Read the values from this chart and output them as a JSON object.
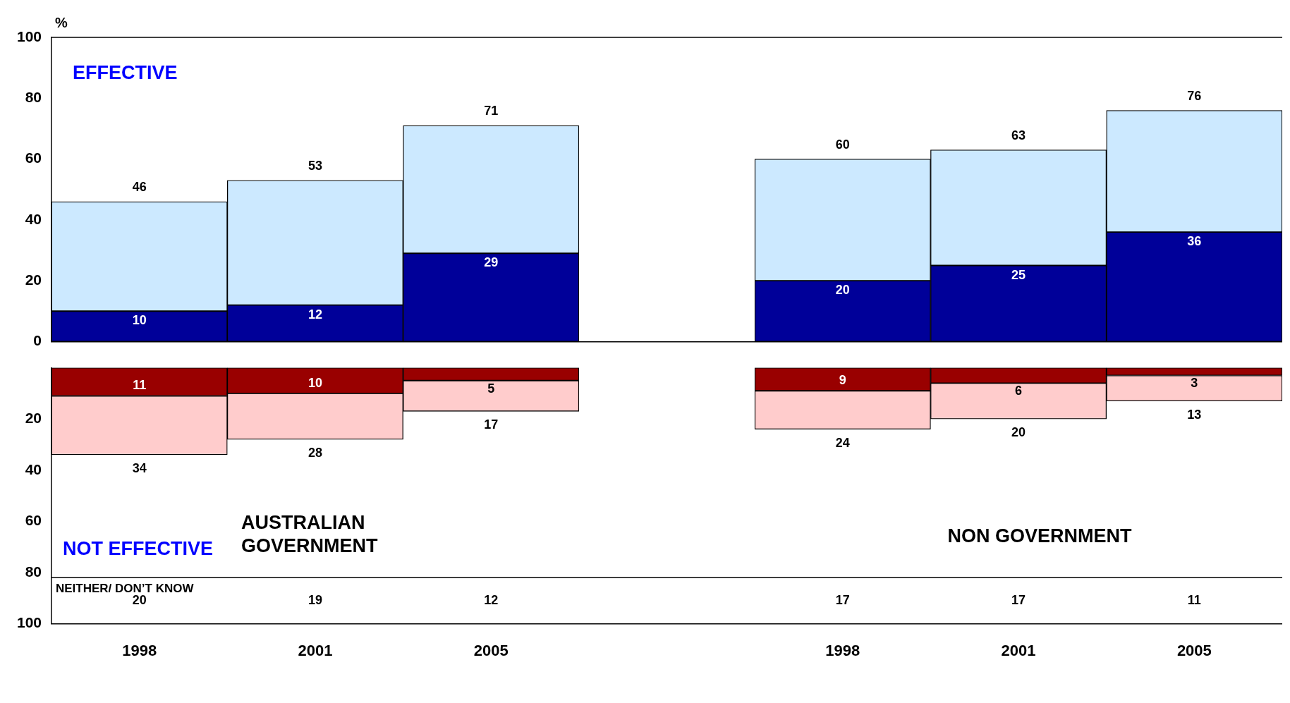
{
  "chart_data": [
    {
      "type": "bar",
      "ylabel": "%",
      "categories": [
        "1998",
        "2001",
        "2005",
        null,
        "1998",
        "2001",
        "2005"
      ],
      "series": [
        {
          "color": "#000099",
          "values": [
            10,
            12,
            29,
            null,
            20,
            25,
            36
          ],
          "value_labels": [
            "10",
            "12",
            "29",
            null,
            "20",
            "25",
            "36"
          ]
        },
        {
          "color": "#cce9ff",
          "values": [
            36,
            41,
            42,
            null,
            40,
            38,
            40
          ]
        }
      ],
      "stacked": true,
      "totals": [
        "46",
        "53",
        "71",
        null,
        "60",
        "63",
        "76"
      ],
      "ylim": [
        0,
        100
      ],
      "yticks": [
        0,
        20,
        40,
        60,
        80,
        100
      ],
      "tick_labels": "y",
      "annotations": [
        "EFFECTIVE"
      ],
      "grid": false,
      "legend": false
    },
    {
      "type": "bar",
      "categories": [
        "1998",
        "2001",
        "2005",
        null,
        "1998",
        "2001",
        "2005"
      ],
      "series": [
        {
          "color": "#990000",
          "values": [
            11,
            10,
            5,
            null,
            9,
            6,
            3
          ],
          "value_labels": [
            "11",
            "10",
            "5",
            null,
            "9",
            "6",
            "3"
          ]
        },
        {
          "color": "#ffcccc",
          "values": [
            23,
            18,
            12,
            null,
            15,
            14,
            10
          ]
        }
      ],
      "stacked": true,
      "totals": [
        "34",
        "28",
        "17",
        null,
        "24",
        "20",
        "13"
      ],
      "ylim": [
        100,
        0
      ],
      "yticks": [
        20,
        40,
        60,
        80,
        100
      ],
      "ref_lines": [
        {
          "axis": "y",
          "value": 82,
          "label": "NEITHER/ DON’T KNOW"
        }
      ],
      "annotations": [
        "NOT EFFECTIVE",
        "AUSTRALIAN GOVERNMENT",
        "NON GOVERNMENT",
        "20",
        "19",
        "12",
        "17",
        "17",
        "11"
      ],
      "grid": false,
      "legend": false
    }
  ]
}
